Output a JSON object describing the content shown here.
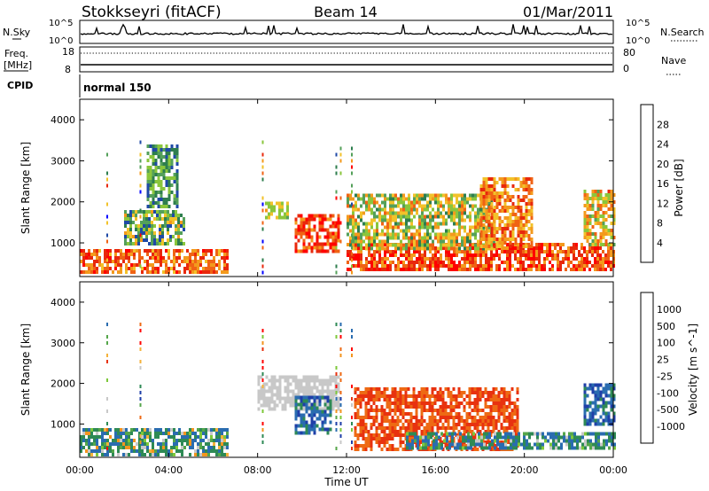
{
  "header": {
    "station": "Stokkseyri (fitACF)",
    "beam": "Beam 14",
    "date": "01/Mar/2011"
  },
  "strips": {
    "nsky_label": "N.Sky",
    "nsky_ticks": [
      "10^5",
      "10^0"
    ],
    "nsearch_label": "N.Search",
    "freq_label_1": "Freq.",
    "freq_label_2": "[MHz]",
    "freq_ticks": [
      "18",
      "8"
    ],
    "nave_label": "Nave",
    "nave_ticks": [
      "80",
      "0"
    ],
    "cpid_label": "CPID",
    "cpid_value": "normal 150"
  },
  "chart_data": [
    {
      "type": "heatmap",
      "name": "power",
      "xlabel": "",
      "ylabel": "Slant Range [km]",
      "xlim": [
        "00:00",
        "24:00"
      ],
      "ylim": [
        180,
        4500
      ],
      "ytick_labels": [
        "1000",
        "2000",
        "3000",
        "4000"
      ],
      "colorbar": {
        "label": "Power [dB]",
        "range": [
          0,
          32
        ],
        "tick_labels": [
          "4",
          "8",
          "12",
          "16",
          "20",
          "24",
          "28"
        ],
        "colors": [
          "#0000ff",
          "#1f49a6",
          "#2e7e4e",
          "#54a05a",
          "#8ac63c",
          "#f2c22a",
          "#f39a1d",
          "#f06314",
          "#e8280c",
          "#ff0000"
        ]
      },
      "features": [
        {
          "time": [
            "00:00",
            "06:40"
          ],
          "range_km": [
            250,
            850
          ],
          "level_db": [
            18,
            30
          ]
        },
        {
          "time": [
            "02:00",
            "04:40"
          ],
          "range_km": [
            1000,
            1800
          ],
          "level_db": [
            4,
            20
          ]
        },
        {
          "time": [
            "03:00",
            "04:20"
          ],
          "range_km": [
            1900,
            3400
          ],
          "level_db": [
            4,
            16
          ]
        },
        {
          "time": [
            "08:20",
            "09:20"
          ],
          "range_km": [
            1600,
            2000
          ],
          "level_db": [
            12,
            20
          ]
        },
        {
          "time": [
            "09:40",
            "11:40"
          ],
          "range_km": [
            800,
            1700
          ],
          "level_db": [
            20,
            32
          ]
        },
        {
          "time": [
            "12:00",
            "24:00"
          ],
          "range_km": [
            380,
            1000
          ],
          "level_db": [
            20,
            32
          ]
        },
        {
          "time": [
            "12:00",
            "18:40"
          ],
          "range_km": [
            900,
            2200
          ],
          "level_db": [
            8,
            24
          ]
        },
        {
          "time": [
            "18:00",
            "20:20"
          ],
          "range_km": [
            900,
            2600
          ],
          "level_db": [
            16,
            28
          ]
        },
        {
          "time": [
            "22:40",
            "24:00"
          ],
          "range_km": [
            1000,
            2300
          ],
          "level_db": [
            12,
            26
          ]
        }
      ]
    },
    {
      "type": "heatmap",
      "name": "velocity",
      "xlabel": "Time UT",
      "ylabel": "Slant Range [km]",
      "xlim": [
        "00:00",
        "24:00"
      ],
      "xtick_labels": [
        "00:00",
        "04:00",
        "08:00",
        "12:00",
        "16:00",
        "20:00",
        "00:00"
      ],
      "ylim": [
        180,
        4500
      ],
      "ytick_labels": [
        "1000",
        "2000",
        "3000",
        "4000"
      ],
      "colorbar": {
        "label": "Velocity [m s^-1]",
        "tick_labels": [
          "1000",
          "500",
          "100",
          "25",
          "-25",
          "-100",
          "-500",
          "-1000"
        ],
        "colors": [
          "#1f3fa8",
          "#2a6cb0",
          "#2e8a55",
          "#55a64a",
          "#7dc83a",
          "#c8c8c8",
          "#f5b23a",
          "#f3951f",
          "#ee6a14",
          "#e8320f",
          "#ff0000"
        ]
      },
      "features": [
        {
          "time": [
            "00:00",
            "06:40"
          ],
          "range_km": [
            280,
            900
          ],
          "velocity_ms": [
            -100,
            500
          ]
        },
        {
          "time": [
            "08:00",
            "11:40"
          ],
          "range_km": [
            1400,
            2200
          ],
          "velocity_ms": [
            -25,
            25
          ]
        },
        {
          "time": [
            "09:40",
            "11:20"
          ],
          "range_km": [
            800,
            1700
          ],
          "velocity_ms": [
            100,
            1000
          ]
        },
        {
          "time": [
            "12:20",
            "19:40"
          ],
          "range_km": [
            350,
            1900
          ],
          "velocity_ms": [
            -500,
            -100
          ]
        },
        {
          "time": [
            "14:40",
            "24:00"
          ],
          "range_km": [
            380,
            800
          ],
          "velocity_ms": [
            -25,
            500
          ]
        },
        {
          "time": [
            "22:40",
            "24:00"
          ],
          "range_km": [
            1000,
            2000
          ],
          "velocity_ms": [
            100,
            1000
          ]
        }
      ]
    }
  ]
}
